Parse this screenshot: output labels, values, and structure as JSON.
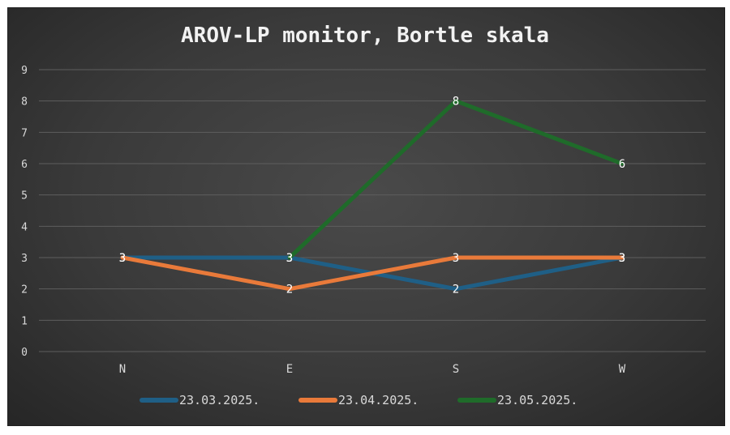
{
  "chart_data": {
    "type": "line",
    "title": "AROV-LP monitor, Bortle skala",
    "categories": [
      "N",
      "E",
      "S",
      "W"
    ],
    "ylim": [
      0,
      9
    ],
    "yticks": [
      0,
      1,
      2,
      3,
      4,
      5,
      6,
      7,
      8,
      9
    ],
    "grid": true,
    "legend_position": "bottom",
    "series": [
      {
        "name": "23.03.2025.",
        "color": "#1f5f86",
        "values": [
          3,
          3,
          2,
          3
        ],
        "labels": [
          "3",
          "3",
          "2",
          "3"
        ]
      },
      {
        "name": "23.04.2025.",
        "color": "#e97a3a",
        "values": [
          3,
          2,
          3,
          3
        ],
        "labels": [
          "3",
          "2",
          "3",
          "3"
        ]
      },
      {
        "name": "23.05.2025.",
        "color": "#1f6b2a",
        "values": [
          null,
          3,
          8,
          6
        ],
        "labels": [
          "",
          "3",
          "8",
          "6"
        ]
      }
    ]
  }
}
